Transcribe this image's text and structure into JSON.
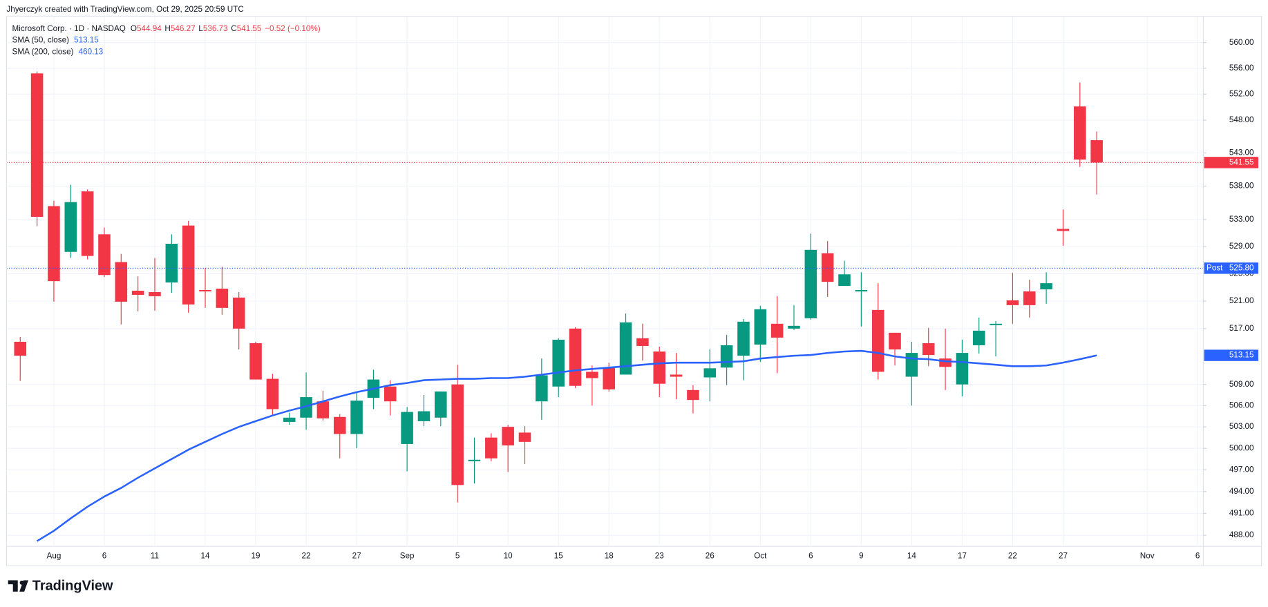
{
  "chart_data": {
    "type": "candlestick",
    "header": "Jhyerczyk created with TradingView.com, Oct 29, 2025 20:59 UTC",
    "title": "Microsoft Corp. · 1D · NASDAQ",
    "ohlc_letters": [
      "O",
      "H",
      "L",
      "C"
    ],
    "change_label": "−0.52 (−0.10%)",
    "branding": "TradingView",
    "up_color": "#089981",
    "down_color": "#f23645",
    "log_scale": true,
    "grid": true,
    "categories": [
      null,
      null,
      "Aug",
      null,
      null,
      "6",
      null,
      null,
      "11",
      null,
      null,
      "14",
      null,
      null,
      "19",
      null,
      null,
      "22",
      null,
      null,
      "27",
      null,
      null,
      "Sep",
      null,
      null,
      "5",
      null,
      null,
      "10",
      null,
      null,
      "15",
      null,
      null,
      "18",
      null,
      null,
      "23",
      null,
      null,
      "26",
      null,
      null,
      "Oct",
      null,
      null,
      "6",
      null,
      null,
      "9",
      null,
      null,
      "14",
      null,
      null,
      "17",
      null,
      null,
      "22",
      null,
      null,
      "27",
      null,
      null,
      null,
      null,
      "Nov",
      null,
      null,
      "6"
    ],
    "open": [
      515.1,
      555.2,
      535.0,
      528.2,
      537.2,
      530.8,
      526.7,
      522.5,
      522.3,
      523.7,
      532.1,
      522.6,
      522.8,
      521.5,
      514.9,
      509.8,
      503.7,
      504.3,
      506.6,
      504.4,
      502.0,
      507.1,
      508.7,
      500.6,
      503.8,
      504.3,
      509.0,
      498.2,
      501.5,
      503.0,
      502.2,
      506.6,
      508.7,
      517.0,
      510.8,
      511.4,
      510.4,
      515.6,
      513.7,
      510.4,
      508.2,
      510.0,
      511.4,
      513.1,
      514.7,
      517.7,
      517.0,
      518.5,
      528.0,
      523.2,
      522.4,
      519.7,
      516.4,
      510.1,
      514.9,
      512.7,
      509.0,
      514.6,
      517.5,
      521.1,
      522.4,
      522.7,
      531.6,
      550.1,
      544.94,
      null,
      null,
      null,
      null,
      null,
      null
    ],
    "high": [
      515.8,
      555.5,
      535.8,
      538.2,
      537.5,
      531.8,
      527.9,
      524.6,
      527.3,
      530.8,
      532.8,
      525.8,
      526.0,
      522.3,
      515.1,
      510.5,
      505.0,
      510.7,
      508.1,
      504.8,
      507.9,
      511.1,
      509.6,
      505.8,
      507.5,
      508.0,
      511.8,
      501.5,
      502.1,
      503.3,
      503.1,
      512.7,
      515.6,
      517.2,
      511.7,
      512.1,
      519.2,
      517.7,
      514.4,
      513.5,
      508.9,
      514.0,
      516.1,
      518.4,
      520.3,
      521.7,
      520.4,
      530.9,
      529.8,
      526.9,
      525.2,
      523.6,
      516.4,
      515.1,
      517.1,
      517.0,
      515.4,
      518.6,
      518.1,
      525.1,
      524.1,
      525.2,
      534.5,
      553.8,
      546.27,
      null,
      null,
      null,
      null,
      null,
      null
    ],
    "low": [
      509.5,
      532.0,
      520.9,
      527.3,
      527.1,
      524.5,
      517.6,
      519.5,
      519.6,
      522.2,
      519.3,
      520.0,
      519.0,
      514.0,
      509.7,
      504.7,
      503.3,
      502.6,
      503.9,
      498.6,
      500.0,
      505.5,
      504.6,
      496.8,
      503.1,
      503.1,
      492.5,
      495.1,
      498.2,
      496.7,
      497.8,
      504.0,
      507.2,
      508.5,
      506.0,
      508.0,
      510.4,
      512.4,
      507.2,
      506.9,
      504.9,
      506.6,
      508.9,
      509.6,
      512.2,
      510.6,
      516.8,
      518.3,
      521.6,
      523.2,
      517.3,
      509.7,
      511.7,
      506.0,
      511.6,
      508.2,
      507.3,
      513.4,
      513.0,
      517.7,
      518.6,
      520.6,
      529.1,
      540.9,
      536.73,
      null,
      null,
      null,
      null,
      null,
      null
    ],
    "close": [
      513.1,
      533.4,
      523.9,
      535.6,
      527.6,
      524.8,
      520.9,
      521.9,
      521.7,
      529.4,
      520.5,
      522.4,
      520.0,
      517.0,
      509.7,
      505.5,
      504.3,
      507.2,
      504.2,
      502.0,
      506.7,
      509.7,
      506.6,
      505.1,
      505.2,
      508.0,
      494.9,
      498.4,
      498.6,
      500.4,
      500.9,
      510.3,
      515.4,
      508.8,
      509.9,
      508.3,
      517.9,
      514.5,
      509.1,
      510.1,
      506.8,
      511.3,
      514.6,
      518.0,
      519.8,
      515.7,
      517.4,
      528.5,
      523.8,
      524.9,
      522.6,
      510.8,
      514.0,
      513.5,
      513.2,
      511.5,
      513.5,
      516.7,
      517.7,
      520.4,
      520.4,
      523.6,
      531.3,
      542.0,
      541.55,
      null,
      null,
      null,
      null,
      null,
      null
    ],
    "series": [
      {
        "name": "SMA (50, close)",
        "color": "#2962ff",
        "values": [
          null,
          487.2,
          488.6,
          490.3,
          491.9,
          493.3,
          494.5,
          495.9,
          497.2,
          498.5,
          499.8,
          500.9,
          502.0,
          503.0,
          503.8,
          504.6,
          505.3,
          505.9,
          506.6,
          507.3,
          507.9,
          508.4,
          508.9,
          509.2,
          509.6,
          509.7,
          509.8,
          509.8,
          509.9,
          509.9,
          510.1,
          510.4,
          510.7,
          511.0,
          511.2,
          511.4,
          511.6,
          511.8,
          512.0,
          512.1,
          512.1,
          512.1,
          512.2,
          512.3,
          512.7,
          512.9,
          513.1,
          513.2,
          513.5,
          513.7,
          513.8,
          513.5,
          513.0,
          512.7,
          512.6,
          512.3,
          512.2,
          512.0,
          511.8,
          511.6,
          511.6,
          511.7,
          512.1,
          512.6,
          513.15,
          null,
          null,
          null,
          null,
          null,
          null
        ]
      }
    ],
    "indicators": [
      {
        "name": "SMA (200, close)",
        "value": 460.13,
        "color": "#2962ff"
      }
    ],
    "post_label": "Post",
    "post_market": {
      "value": 525.8,
      "label": "525.80"
    },
    "ylim": [
      486.6,
      564.4
    ],
    "yticks": [
      {
        "value": 560,
        "label": "560.00"
      },
      {
        "value": 556,
        "label": "556.00"
      },
      {
        "value": 552,
        "label": "552.00"
      },
      {
        "value": 548,
        "label": "548.00"
      },
      {
        "value": 543,
        "label": "543.00"
      },
      {
        "value": 538,
        "label": "538.00"
      },
      {
        "value": 533,
        "label": "533.00"
      },
      {
        "value": 529,
        "label": "529.00"
      },
      {
        "value": 525,
        "label": "525.00"
      },
      {
        "value": 521,
        "label": "521.00"
      },
      {
        "value": 517,
        "label": "517.00"
      },
      {
        "value": 509,
        "label": "509.00"
      },
      {
        "value": 506,
        "label": "506.00"
      },
      {
        "value": 503,
        "label": "503.00"
      },
      {
        "value": 500,
        "label": "500.00"
      },
      {
        "value": 497,
        "label": "497.00"
      },
      {
        "value": 494,
        "label": "494.00"
      },
      {
        "value": 491,
        "label": "491.00"
      },
      {
        "value": 488,
        "label": "488.00"
      }
    ]
  }
}
